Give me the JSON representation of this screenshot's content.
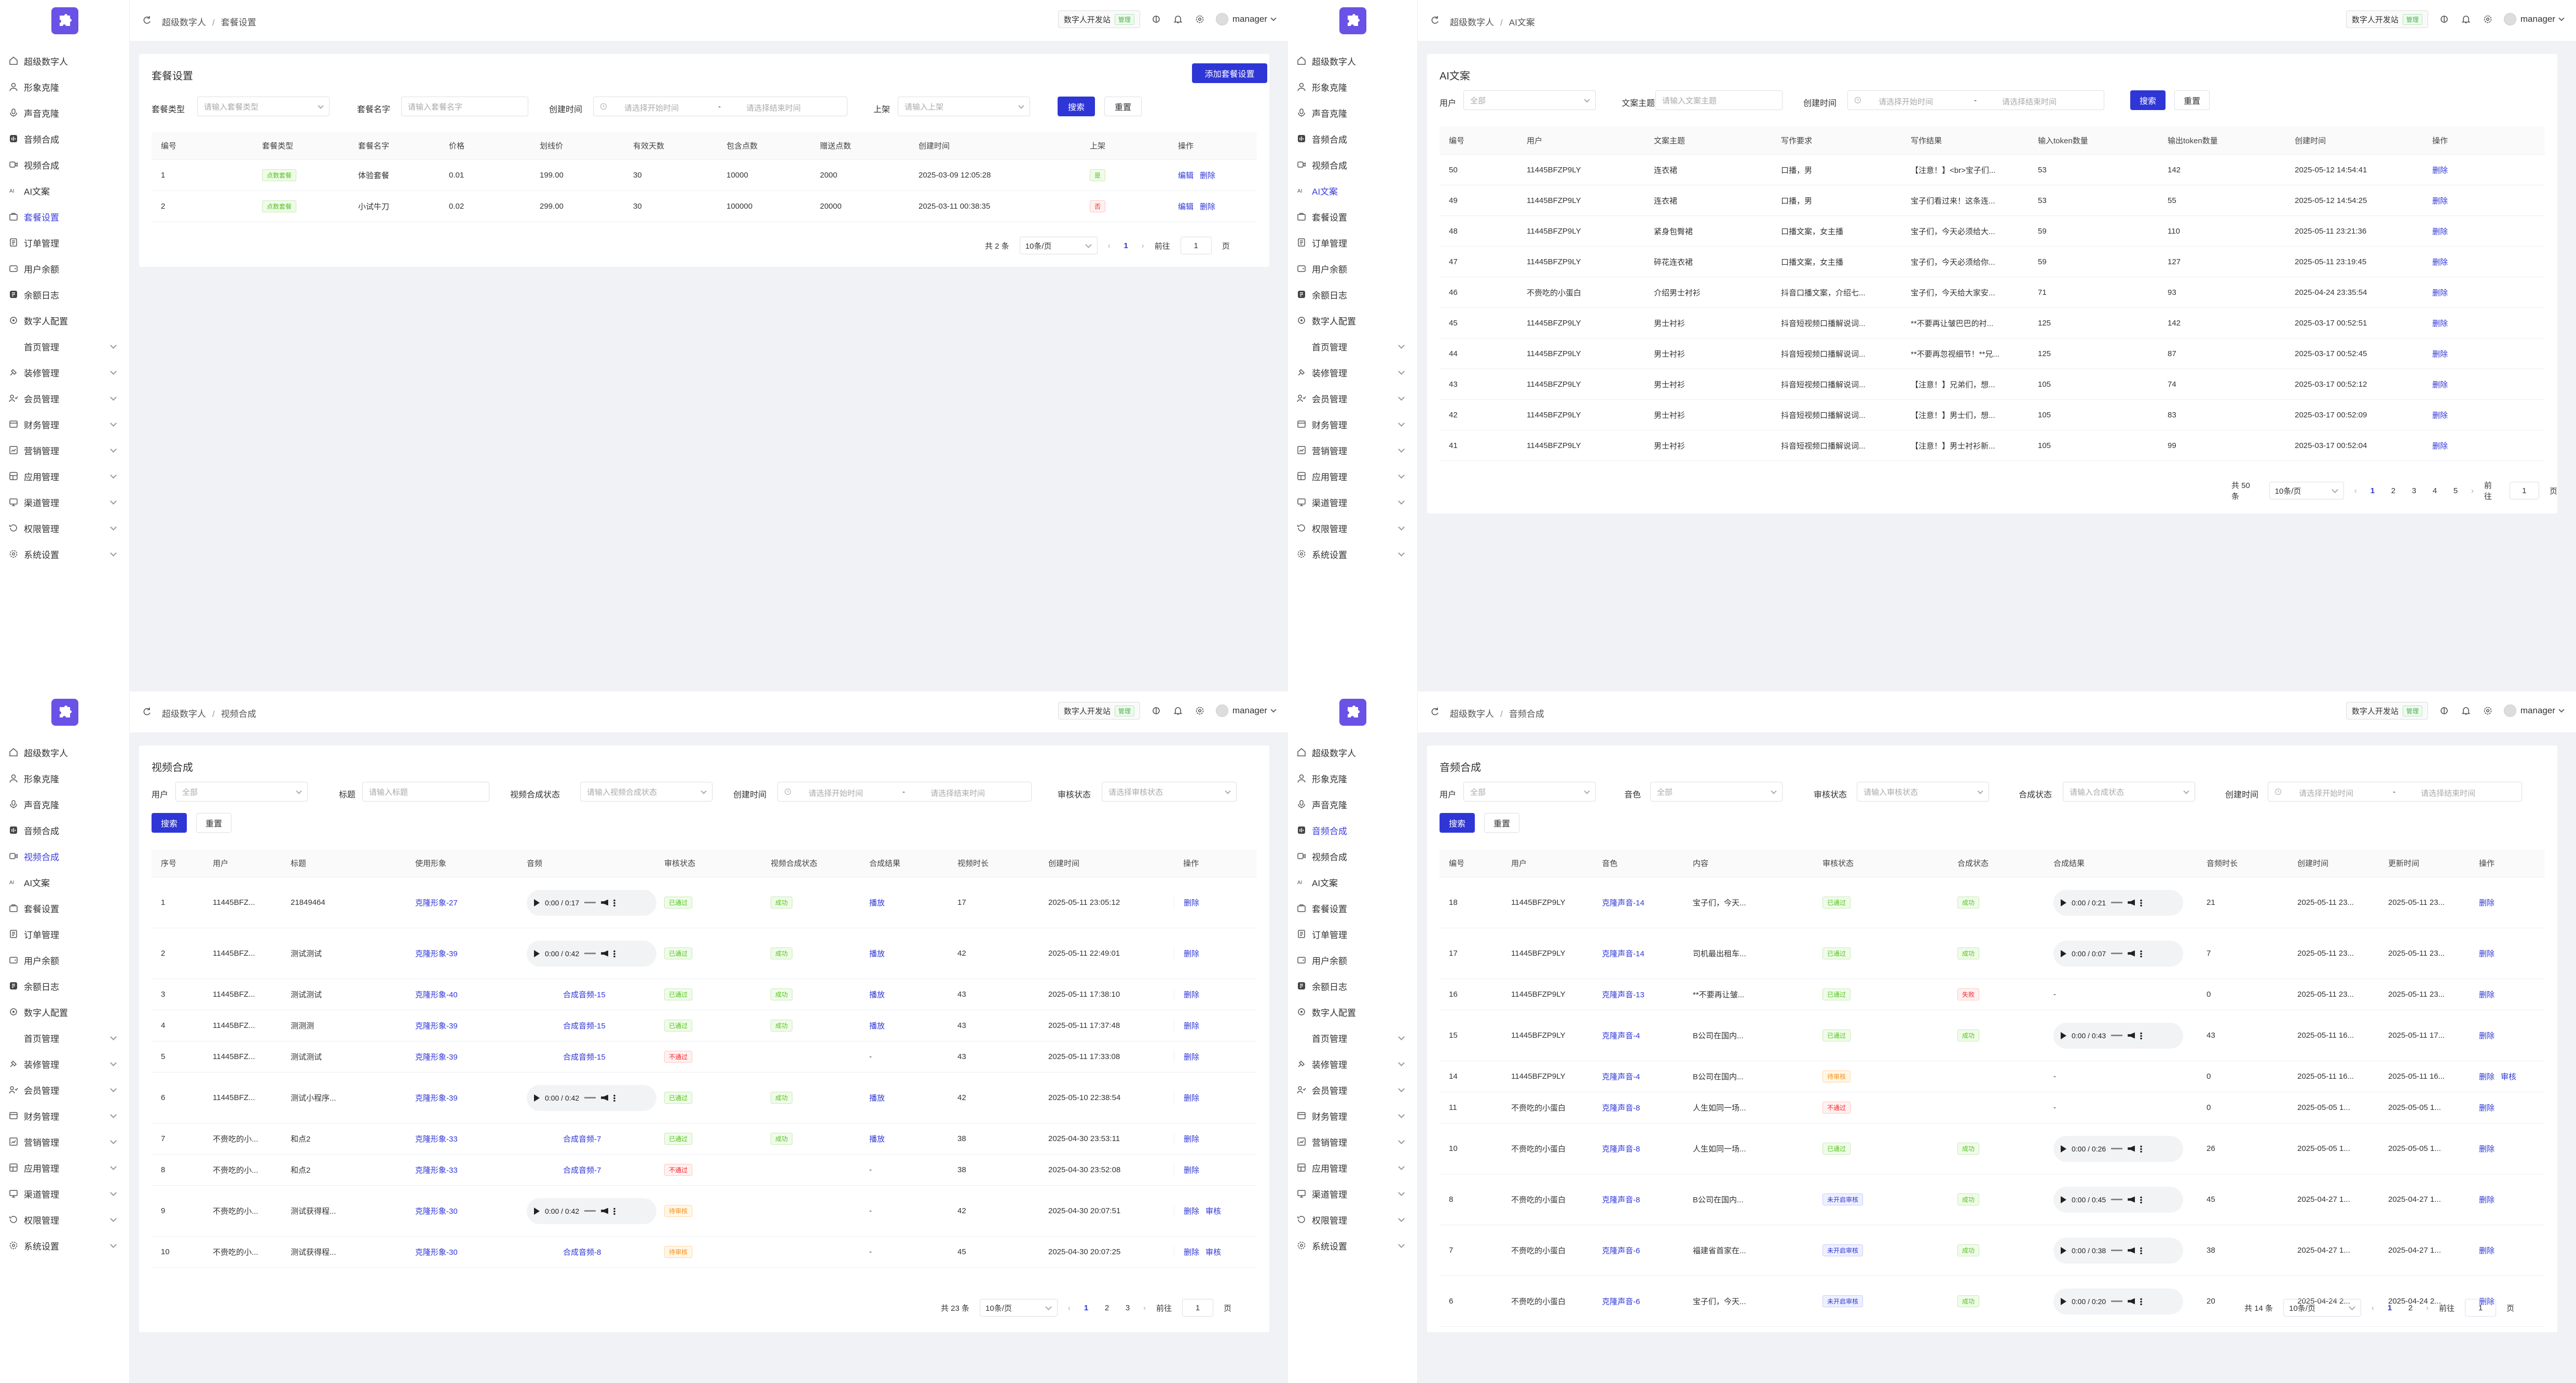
{
  "header": {
    "dev_label": "数字人开发站",
    "dev_tag": "管理",
    "username": "manager"
  },
  "sidebar": {
    "items": [
      {
        "label": "超级数字人",
        "icon": "home-icon",
        "expand": false
      },
      {
        "label": "形象克隆",
        "icon": "person-icon",
        "expand": false
      },
      {
        "label": "声音克隆",
        "icon": "voice-icon",
        "expand": false
      },
      {
        "label": "音频合成",
        "icon": "audio-icon",
        "expand": false
      },
      {
        "label": "视频合成",
        "icon": "video-icon",
        "expand": false
      },
      {
        "label": "AI文案",
        "icon": "ai-icon",
        "expand": false
      },
      {
        "label": "套餐设置",
        "icon": "package-icon",
        "expand": false
      },
      {
        "label": "订单管理",
        "icon": "order-icon",
        "expand": false
      },
      {
        "label": "用户余额",
        "icon": "wallet-icon",
        "expand": false
      },
      {
        "label": "余额日志",
        "icon": "log-icon",
        "expand": false
      },
      {
        "label": "数字人配置",
        "icon": "gear-icon",
        "expand": false
      },
      {
        "label": "首页管理",
        "icon": "",
        "expand": true
      },
      {
        "label": "装修管理",
        "icon": "decor-icon",
        "expand": true
      },
      {
        "label": "会员管理",
        "icon": "member-icon",
        "expand": true
      },
      {
        "label": "财务管理",
        "icon": "finance-icon",
        "expand": true
      },
      {
        "label": "营销管理",
        "icon": "marketing-icon",
        "expand": true
      },
      {
        "label": "应用管理",
        "icon": "app-icon",
        "expand": true
      },
      {
        "label": "渠道管理",
        "icon": "channel-icon",
        "expand": true
      },
      {
        "label": "权限管理",
        "icon": "permission-icon",
        "expand": true
      },
      {
        "label": "系统设置",
        "icon": "settings-icon",
        "expand": true
      }
    ]
  },
  "breadcrumb_root": "超级数字人",
  "common": {
    "search": "搜索",
    "reset": "重置",
    "start_ph": "请选择开始时间",
    "end_ph": "请选择结束时间",
    "dash": "-",
    "page_size": "10条/页",
    "goto": "前往",
    "page_unit": "页",
    "delete": "删除",
    "edit": "编辑",
    "audit": "审核"
  },
  "p1": {
    "crumb": "套餐设置",
    "title": "套餐设置",
    "add": "添加套餐设置",
    "filters": {
      "type_label": "套餐类型",
      "type_ph": "请输入套餐类型",
      "name_label": "套餐名字",
      "name_ph": "请输入套餐名字",
      "time_label": "创建时间",
      "shelf_label": "上架",
      "shelf_ph": "请输入上架"
    },
    "columns": [
      "编号",
      "套餐类型",
      "套餐名字",
      "价格",
      "划线价",
      "有效天数",
      "包含点数",
      "赠送点数",
      "创建时间",
      "上架",
      "操作"
    ],
    "rows": [
      [
        "1",
        "点数套餐",
        "体验套餐",
        "0.01",
        "199.00",
        "30",
        "10000",
        "2000",
        "2025-03-09 12:05:28",
        "是"
      ],
      [
        "2",
        "点数套餐",
        "小试牛刀",
        "0.02",
        "299.00",
        "30",
        "100000",
        "20000",
        "2025-03-11 00:38:35",
        "否"
      ]
    ],
    "total": "共 2 条",
    "pages": [
      "1"
    ],
    "cur": "1"
  },
  "p2": {
    "crumb": "AI文案",
    "title": "AI文案",
    "filters": {
      "user_label": "用户",
      "user_ph": "全部",
      "topic_label": "文案主题",
      "topic_ph": "请输入文案主题",
      "time_label": "创建时间"
    },
    "columns": [
      "编号",
      "用户",
      "文案主题",
      "写作要求",
      "写作结果",
      "输入token数量",
      "输出token数量",
      "创建时间",
      "操作"
    ],
    "rows": [
      [
        "50",
        "11445BFZP9LY",
        "连衣裙",
        "口播，男",
        "【注意！】<br>宝子们...",
        "53",
        "142",
        "2025-05-12 14:54:41"
      ],
      [
        "49",
        "11445BFZP9LY",
        "连衣裙",
        "口播，男",
        "宝子们看过来！这条连...",
        "53",
        "55",
        "2025-05-12 14:54:25"
      ],
      [
        "48",
        "11445BFZP9LY",
        "紧身包臀裙",
        "口播文案，女主播",
        "宝子们，今天必须给大...",
        "59",
        "110",
        "2025-05-11 23:21:36"
      ],
      [
        "47",
        "11445BFZP9LY",
        "碎花连衣裙",
        "口播文案，女主播",
        "宝子们，今天必须给你...",
        "59",
        "127",
        "2025-05-11 23:19:45"
      ],
      [
        "46",
        "不赍吃的小蛋白",
        "介绍男士衬衫",
        "抖音口播文案，介绍七...",
        "宝子们，今天给大家安...",
        "71",
        "93",
        "2025-04-24 23:35:54"
      ],
      [
        "45",
        "11445BFZP9LY",
        "男士衬衫",
        "抖音短视频口播解说词...",
        "**不要再让皱巴巴的衬...",
        "125",
        "142",
        "2025-03-17 00:52:51"
      ],
      [
        "44",
        "11445BFZP9LY",
        "男士衬衫",
        "抖音短视频口播解说词...",
        "**不要再忽视细节！**兄...",
        "125",
        "87",
        "2025-03-17 00:52:45"
      ],
      [
        "43",
        "11445BFZP9LY",
        "男士衬衫",
        "抖音短视频口播解说词...",
        "【注意！】兄弟们，想...",
        "105",
        "74",
        "2025-03-17 00:52:12"
      ],
      [
        "42",
        "11445BFZP9LY",
        "男士衬衫",
        "抖音短视频口播解说词...",
        "【注意！】男士们，想...",
        "105",
        "83",
        "2025-03-17 00:52:09"
      ],
      [
        "41",
        "11445BFZP9LY",
        "男士衬衫",
        "抖音短视频口播解说词...",
        "【注意！】男士衬衫新...",
        "105",
        "99",
        "2025-03-17 00:52:04"
      ]
    ],
    "total": "共 50 条",
    "pages": [
      "1",
      "2",
      "3",
      "4",
      "5"
    ],
    "cur": "1"
  },
  "p3": {
    "crumb": "视频合成",
    "title": "视频合成",
    "filters": {
      "user_label": "用户",
      "user_ph": "全部",
      "title_label": "标题",
      "title_ph": "请输入标题",
      "status_label": "视频合成状态",
      "status_ph": "请输入视频合成状态",
      "time_label": "创建时间",
      "audit_label": "审核状态",
      "audit_ph": "请选择审核状态"
    },
    "columns": [
      "序号",
      "用户",
      "标题",
      "使用形象",
      "音频",
      "审核状态",
      "视频合成状态",
      "合成结果",
      "视频时长",
      "创建时间",
      "操作"
    ],
    "rows": [
      {
        "no": "1",
        "user": "11445BFZ...",
        "title": "21849464",
        "img": "克隆形象-27",
        "audio": {
          "type": "player",
          "time": "0:00 / 0:17"
        },
        "audit": "已通过",
        "audit_s": "ok",
        "status": "成功",
        "result": "播放",
        "dur": "17",
        "time": "2025-05-11 23:05:12",
        "ops": [
          "删除"
        ]
      },
      {
        "no": "2",
        "user": "11445BFZ...",
        "title": "测试测试",
        "img": "克隆形象-39",
        "audio": {
          "type": "player",
          "time": "0:00 / 0:42"
        },
        "audit": "已通过",
        "audit_s": "ok",
        "status": "成功",
        "result": "播放",
        "dur": "42",
        "time": "2025-05-11 22:49:01",
        "ops": [
          "删除"
        ]
      },
      {
        "no": "3",
        "user": "11445BFZ...",
        "title": "测试测试",
        "img": "克隆形象-40",
        "audio": {
          "type": "link",
          "text": "合成音频-15"
        },
        "audit": "已通过",
        "audit_s": "ok",
        "status": "成功",
        "result": "播放",
        "dur": "43",
        "time": "2025-05-11 17:38:10",
        "ops": [
          "删除"
        ]
      },
      {
        "no": "4",
        "user": "11445BFZ...",
        "title": "测测测",
        "img": "克隆形象-39",
        "audio": {
          "type": "link",
          "text": "合成音频-15"
        },
        "audit": "已通过",
        "audit_s": "ok",
        "status": "成功",
        "result": "播放",
        "dur": "43",
        "time": "2025-05-11 17:37:48",
        "ops": [
          "删除"
        ]
      },
      {
        "no": "5",
        "user": "11445BFZ...",
        "title": "测试测试",
        "img": "克隆形象-39",
        "audio": {
          "type": "link",
          "text": "合成音频-15"
        },
        "audit": "不通过",
        "audit_s": "no",
        "status": "",
        "result": "-",
        "dur": "43",
        "time": "2025-05-11 17:33:08",
        "ops": [
          "删除"
        ]
      },
      {
        "no": "6",
        "user": "11445BFZ...",
        "title": "测试小程序...",
        "img": "克隆形象-39",
        "audio": {
          "type": "player",
          "time": "0:00 / 0:42"
        },
        "audit": "已通过",
        "audit_s": "ok",
        "status": "成功",
        "result": "播放",
        "dur": "42",
        "time": "2025-05-10 22:38:54",
        "ops": [
          "删除"
        ]
      },
      {
        "no": "7",
        "user": "不赍吃的小...",
        "title": "和点2",
        "img": "克隆形象-33",
        "audio": {
          "type": "link",
          "text": "合成音频-7"
        },
        "audit": "已通过",
        "audit_s": "ok",
        "status": "成功",
        "result": "播放",
        "dur": "38",
        "time": "2025-04-30 23:53:11",
        "ops": [
          "删除"
        ]
      },
      {
        "no": "8",
        "user": "不赍吃的小...",
        "title": "和点2",
        "img": "克隆形象-33",
        "audio": {
          "type": "link",
          "text": "合成音频-7"
        },
        "audit": "不通过",
        "audit_s": "no",
        "status": "",
        "result": "-",
        "dur": "38",
        "time": "2025-04-30 23:52:08",
        "ops": [
          "删除"
        ]
      },
      {
        "no": "9",
        "user": "不赍吃的小...",
        "title": "测试获得程...",
        "img": "克隆形象-30",
        "audio": {
          "type": "player",
          "time": "0:00 / 0:42"
        },
        "audit": "待审核",
        "audit_s": "wt",
        "status": "",
        "result": "-",
        "dur": "42",
        "time": "2025-04-30 20:07:51",
        "ops": [
          "删除",
          "审核"
        ]
      },
      {
        "no": "10",
        "user": "不赍吃的小...",
        "title": "测试获得程...",
        "img": "克隆形象-30",
        "audio": {
          "type": "link",
          "text": "合成音频-8"
        },
        "audit": "待审核",
        "audit_s": "wt",
        "status": "",
        "result": "-",
        "dur": "45",
        "time": "2025-04-30 20:07:25",
        "ops": [
          "删除",
          "审核"
        ]
      }
    ],
    "total": "共 23 条",
    "pages": [
      "1",
      "2",
      "3"
    ],
    "cur": "1"
  },
  "p4": {
    "crumb": "音频合成",
    "title": "音频合成",
    "filters": {
      "user_label": "用户",
      "user_ph": "全部",
      "voice_label": "音色",
      "voice_ph": "全部",
      "audit_label": "审核状态",
      "audit_ph": "请输入审核状态",
      "synth_label": "合成状态",
      "synth_ph": "请输入合成状态",
      "time_label": "创建时间"
    },
    "columns": [
      "编号",
      "用户",
      "音色",
      "内容",
      "审核状态",
      "合成状态",
      "合成结果",
      "音频时长",
      "创建时间",
      "更新时间",
      "操作"
    ],
    "rows": [
      {
        "no": "18",
        "user": "11445BFZP9LY",
        "voice": "克隆声音-14",
        "content": "宝子们，今天...",
        "audit": "已通过",
        "audit_s": "ok",
        "status": "成功",
        "status_s": "ok",
        "player": "0:00 / 0:21",
        "dur": "21",
        "ct": "2025-05-11 23...",
        "ut": "2025-05-11 23...",
        "ops": [
          "删除"
        ]
      },
      {
        "no": "17",
        "user": "11445BFZP9LY",
        "voice": "克隆声音-14",
        "content": "司机最出租车...",
        "audit": "已通过",
        "audit_s": "ok",
        "status": "成功",
        "status_s": "ok",
        "player": "0:00 / 0:07",
        "dur": "7",
        "ct": "2025-05-11 23...",
        "ut": "2025-05-11 23...",
        "ops": [
          "删除"
        ]
      },
      {
        "no": "16",
        "user": "11445BFZP9LY",
        "voice": "克隆声音-13",
        "content": "**不要再让皱...",
        "audit": "已通过",
        "audit_s": "ok",
        "status": "失败",
        "status_s": "no",
        "player": "",
        "dur": "0",
        "ct": "2025-05-11 23...",
        "ut": "2025-05-11 23...",
        "ops": [
          "删除"
        ]
      },
      {
        "no": "15",
        "user": "11445BFZP9LY",
        "voice": "克隆声音-4",
        "content": "B公司在国内...",
        "audit": "已通过",
        "audit_s": "ok",
        "status": "成功",
        "status_s": "ok",
        "player": "0:00 / 0:43",
        "dur": "43",
        "ct": "2025-05-11 16...",
        "ut": "2025-05-11 17...",
        "ops": [
          "删除"
        ]
      },
      {
        "no": "14",
        "user": "11445BFZP9LY",
        "voice": "克隆声音-4",
        "content": "B公司在国内...",
        "audit": "待审核",
        "audit_s": "wt",
        "status": "",
        "status_s": "",
        "player": "",
        "dur": "0",
        "ct": "2025-05-11 16...",
        "ut": "2025-05-11 16...",
        "ops": [
          "删除",
          "审核"
        ]
      },
      {
        "no": "11",
        "user": "不赍吃的小蛋白",
        "voice": "克隆声音-8",
        "content": "人生如同一场...",
        "audit": "不通过",
        "audit_s": "no",
        "status": "",
        "status_s": "",
        "player": "",
        "dur": "0",
        "ct": "2025-05-05 1...",
        "ut": "2025-05-05 1...",
        "ops": [
          "删除"
        ]
      },
      {
        "no": "10",
        "user": "不赍吃的小蛋白",
        "voice": "克隆声音-8",
        "content": "人生如同一场...",
        "audit": "已通过",
        "audit_s": "ok",
        "status": "成功",
        "status_s": "ok",
        "player": "0:00 / 0:26",
        "dur": "26",
        "ct": "2025-05-05 1...",
        "ut": "2025-05-05 1...",
        "ops": [
          "删除"
        ]
      },
      {
        "no": "8",
        "user": "不赍吃的小蛋白",
        "voice": "克隆声音-8",
        "content": "B公司在国内...",
        "audit": "未开启审核",
        "audit_s": "bl",
        "status": "成功",
        "status_s": "ok",
        "player": "0:00 / 0:45",
        "dur": "45",
        "ct": "2025-04-27 1...",
        "ut": "2025-04-27 1...",
        "ops": [
          "删除"
        ]
      },
      {
        "no": "7",
        "user": "不赍吃的小蛋白",
        "voice": "克隆声音-6",
        "content": "福建省首家在...",
        "audit": "未开启审核",
        "audit_s": "bl",
        "status": "成功",
        "status_s": "ok",
        "player": "0:00 / 0:38",
        "dur": "38",
        "ct": "2025-04-27 1...",
        "ut": "2025-04-27 1...",
        "ops": [
          "删除"
        ]
      },
      {
        "no": "6",
        "user": "不赍吃的小蛋白",
        "voice": "克隆声音-6",
        "content": "宝子们，今天...",
        "audit": "未开启审核",
        "audit_s": "bl",
        "status": "成功",
        "status_s": "ok",
        "player": "0:00 / 0:20",
        "dur": "20",
        "ct": "2025-04-24 2...",
        "ut": "2025-04-24 2...",
        "ops": [
          "删除"
        ]
      }
    ],
    "total": "共 14 条",
    "pages": [
      "1",
      "2"
    ],
    "cur": "1"
  }
}
